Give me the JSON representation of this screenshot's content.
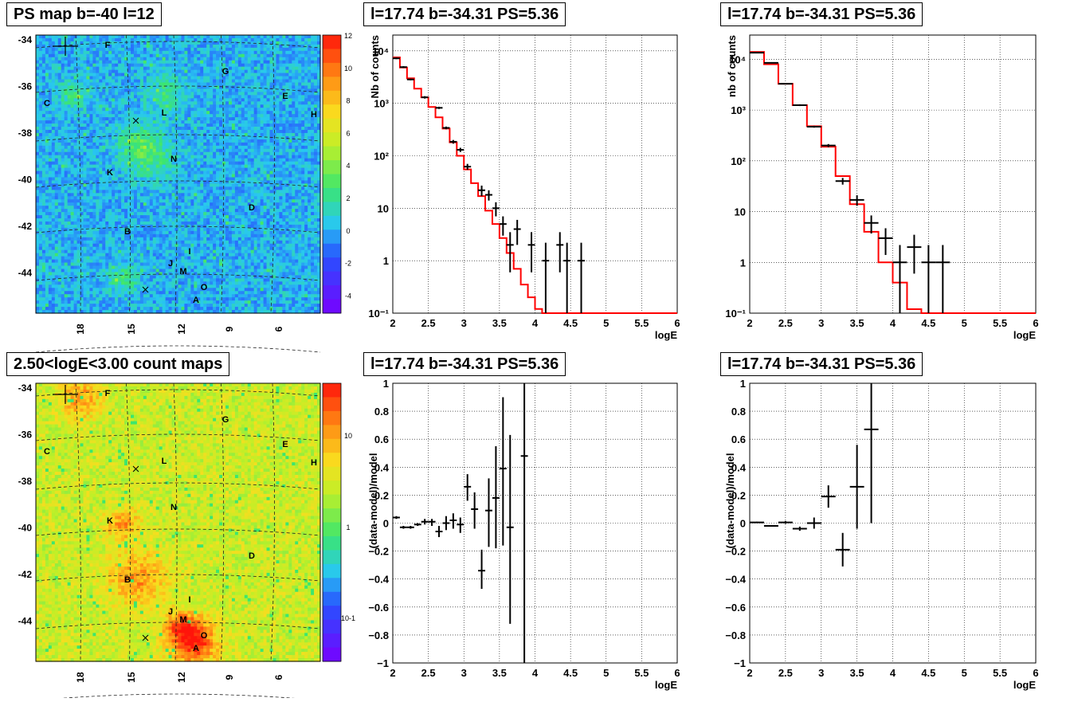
{
  "panels": {
    "ps_map_title": "PS map b=-40 l=12",
    "count_map_title": "2.50<logE<3.00 count maps",
    "spec1_title": "l=17.74 b=-34.31 PS=5.36",
    "spec2_title": "l=17.74 b=-34.31 PS=5.36",
    "res1_title": "l=17.74 b=-34.31 PS=5.36",
    "res2_title": "l=17.74 b=-34.31 PS=5.36"
  },
  "colors": {
    "model_line": "#ff0000",
    "data_markers": "#000000",
    "ps_map_background": "#33e0ee",
    "count_map_background": "#a8e840"
  },
  "chart_data": [
    {
      "type": "heatmap",
      "title": "PS map b=-40 l=12",
      "x_tick_labels": [
        "18",
        "15",
        "12",
        "9",
        "6"
      ],
      "y_tick_labels": [
        "-34",
        "-36",
        "-38",
        "-40",
        "-42",
        "-44"
      ],
      "colorbar_tick_labels": [
        "12",
        "10",
        "8",
        "6",
        "4",
        "2",
        "0",
        "-2",
        "-4"
      ],
      "colorbar_range": [
        -5,
        12
      ],
      "grid": "on",
      "source_labels": [
        "F",
        "G",
        "C",
        "E",
        "H",
        "L",
        "K",
        "N",
        "D",
        "B",
        "J",
        "I",
        "M",
        "O",
        "A"
      ]
    },
    {
      "type": "heatmap",
      "title": "2.50<logE<3.00 count maps",
      "x_tick_labels": [
        "18",
        "15",
        "12",
        "9",
        "6"
      ],
      "y_tick_labels": [
        "-34",
        "-36",
        "-38",
        "-40",
        "-42",
        "-44"
      ],
      "colorbar_tick_labels": [
        "10",
        "1",
        "10-1"
      ],
      "colorbar_scale": "log",
      "grid": "on",
      "source_labels": [
        "F",
        "G",
        "C",
        "E",
        "H",
        "L",
        "K",
        "N",
        "D",
        "B",
        "J",
        "I",
        "M",
        "O",
        "A"
      ]
    },
    {
      "type": "line",
      "title": "l=17.74 b=-34.31 PS=5.36",
      "xlabel": "logE",
      "ylabel": "Nb of counts",
      "xlim": [
        2,
        6
      ],
      "ylim": [
        0.1,
        20000
      ],
      "yscale": "log",
      "grid": "on",
      "x_tick_labels": [
        "2",
        "2.5",
        "3",
        "3.5",
        "4",
        "4.5",
        "5",
        "5.5",
        "6"
      ],
      "y_tick_labels": [
        "10⁴",
        "10³",
        "10²",
        "10",
        "1",
        "10⁻¹"
      ],
      "model": {
        "edges": [
          2.0,
          2.1,
          2.2,
          2.3,
          2.4,
          2.5,
          2.6,
          2.7,
          2.8,
          2.9,
          3.0,
          3.1,
          3.2,
          3.3,
          3.4,
          3.5,
          3.6,
          3.7,
          3.8,
          3.9,
          4.0,
          4.1,
          4.2,
          6.0
        ],
        "values": [
          7500,
          4800,
          3000,
          1900,
          1300,
          850,
          540,
          330,
          180,
          100,
          55,
          30,
          17,
          9,
          5,
          2.7,
          1.4,
          0.7,
          0.35,
          0.2,
          0.12,
          0.1,
          0.1
        ]
      },
      "data": [
        {
          "x": 2.05,
          "y": 7200,
          "lo": 6950,
          "hi": 7450
        },
        {
          "x": 2.15,
          "y": 4900,
          "lo": 4700,
          "hi": 5100
        },
        {
          "x": 2.25,
          "y": 2850,
          "lo": 2750,
          "hi": 2950
        },
        {
          "x": 2.45,
          "y": 1300,
          "lo": 1230,
          "hi": 1370
        },
        {
          "x": 2.65,
          "y": 820,
          "lo": 780,
          "hi": 860
        },
        {
          "x": 2.75,
          "y": 340,
          "lo": 320,
          "hi": 360
        },
        {
          "x": 2.85,
          "y": 185,
          "lo": 170,
          "hi": 200
        },
        {
          "x": 2.95,
          "y": 130,
          "lo": 118,
          "hi": 142
        },
        {
          "x": 3.05,
          "y": 62,
          "lo": 54,
          "hi": 70
        },
        {
          "x": 3.25,
          "y": 22,
          "lo": 17,
          "hi": 27
        },
        {
          "x": 3.35,
          "y": 18,
          "lo": 14,
          "hi": 22
        },
        {
          "x": 3.45,
          "y": 10,
          "lo": 7,
          "hi": 13
        },
        {
          "x": 3.55,
          "y": 5,
          "lo": 3,
          "hi": 7
        },
        {
          "x": 3.65,
          "y": 2,
          "lo": 0.6,
          "hi": 3.5
        },
        {
          "x": 3.75,
          "y": 4,
          "lo": 2,
          "hi": 6
        },
        {
          "x": 3.95,
          "y": 2,
          "lo": 0.6,
          "hi": 3.5
        },
        {
          "x": 4.15,
          "y": 1,
          "lo": 0.1,
          "hi": 2.2
        },
        {
          "x": 4.35,
          "y": 2,
          "lo": 0.6,
          "hi": 3.5
        },
        {
          "x": 4.45,
          "y": 1,
          "lo": 0.1,
          "hi": 2.2
        },
        {
          "x": 4.65,
          "y": 1,
          "lo": 0.1,
          "hi": 2.2
        }
      ]
    },
    {
      "type": "line",
      "title": "l=17.74 b=-34.31 PS=5.36",
      "xlabel": "logE",
      "ylabel": "nb of counts",
      "xlim": [
        2,
        6
      ],
      "ylim": [
        0.1,
        30000
      ],
      "yscale": "log",
      "grid": "on",
      "x_tick_labels": [
        "2",
        "2.5",
        "3",
        "3.5",
        "4",
        "4.5",
        "5",
        "5.5",
        "6"
      ],
      "y_tick_labels": [
        "10⁴",
        "10³",
        "10²",
        "10",
        "1",
        "10⁻¹"
      ],
      "model": {
        "edges": [
          2.0,
          2.2,
          2.4,
          2.6,
          2.8,
          3.0,
          3.2,
          3.4,
          3.6,
          3.8,
          4.0,
          4.2,
          4.4,
          6.0
        ],
        "values": [
          14000,
          8000,
          3300,
          1250,
          480,
          190,
          50,
          14,
          4,
          1,
          0.4,
          0.12,
          0.1
        ]
      },
      "data": [
        {
          "x": 2.1,
          "y": 13500,
          "lo": 13200,
          "hi": 13800
        },
        {
          "x": 2.3,
          "y": 8500,
          "lo": 8300,
          "hi": 8700
        },
        {
          "x": 2.5,
          "y": 3300,
          "lo": 3200,
          "hi": 3400
        },
        {
          "x": 2.7,
          "y": 1250,
          "lo": 1200,
          "hi": 1300
        },
        {
          "x": 2.9,
          "y": 470,
          "lo": 450,
          "hi": 490
        },
        {
          "x": 3.1,
          "y": 200,
          "lo": 186,
          "hi": 214
        },
        {
          "x": 3.3,
          "y": 40,
          "lo": 34,
          "hi": 46
        },
        {
          "x": 3.5,
          "y": 17,
          "lo": 13,
          "hi": 21
        },
        {
          "x": 3.7,
          "y": 6,
          "lo": 3.7,
          "hi": 8.4
        },
        {
          "x": 3.9,
          "y": 3,
          "lo": 1.4,
          "hi": 4.7
        },
        {
          "x": 4.1,
          "y": 1,
          "lo": 0.1,
          "hi": 2.2
        },
        {
          "x": 4.3,
          "y": 2,
          "lo": 0.6,
          "hi": 3.5
        },
        {
          "x": 4.5,
          "y": 1,
          "lo": 0.1,
          "hi": 2.2
        },
        {
          "x": 4.7,
          "y": 1,
          "lo": 0.1,
          "hi": 2.2
        }
      ]
    },
    {
      "type": "scatter",
      "title": "l=17.74 b=-34.31 PS=5.36",
      "xlabel": "logE",
      "ylabel": "(data-model)/model",
      "xlim": [
        2,
        6
      ],
      "ylim": [
        -1,
        1
      ],
      "grid": "on",
      "x_tick_labels": [
        "2",
        "2.5",
        "3",
        "3.5",
        "4",
        "4.5",
        "5",
        "5.5",
        "6"
      ],
      "y_tick_labels": [
        "1",
        "0.8",
        "0.6",
        "0.4",
        "0.2",
        "0",
        "−0.2",
        "−0.4",
        "−0.6",
        "−0.8",
        "−1"
      ],
      "data": [
        {
          "x": 2.05,
          "y": 0.04,
          "lo": 0.03,
          "hi": 0.05
        },
        {
          "x": 2.15,
          "y": -0.03,
          "lo": -0.04,
          "hi": -0.02
        },
        {
          "x": 2.25,
          "y": -0.03,
          "lo": -0.04,
          "hi": -0.02
        },
        {
          "x": 2.35,
          "y": -0.01,
          "lo": -0.02,
          "hi": 0.0
        },
        {
          "x": 2.45,
          "y": 0.01,
          "lo": -0.01,
          "hi": 0.03
        },
        {
          "x": 2.55,
          "y": 0.01,
          "lo": -0.02,
          "hi": 0.03
        },
        {
          "x": 2.65,
          "y": -0.06,
          "lo": -0.1,
          "hi": -0.02
        },
        {
          "x": 2.75,
          "y": 0.0,
          "lo": -0.05,
          "hi": 0.05
        },
        {
          "x": 2.85,
          "y": 0.02,
          "lo": -0.04,
          "hi": 0.07
        },
        {
          "x": 2.95,
          "y": -0.01,
          "lo": -0.07,
          "hi": 0.04
        },
        {
          "x": 3.05,
          "y": 0.26,
          "lo": 0.16,
          "hi": 0.35
        },
        {
          "x": 3.15,
          "y": 0.1,
          "lo": -0.04,
          "hi": 0.22
        },
        {
          "x": 3.25,
          "y": -0.34,
          "lo": -0.47,
          "hi": -0.19
        },
        {
          "x": 3.35,
          "y": 0.09,
          "lo": -0.17,
          "hi": 0.32
        },
        {
          "x": 3.45,
          "y": 0.18,
          "lo": -0.18,
          "hi": 0.55
        },
        {
          "x": 3.55,
          "y": 0.39,
          "lo": -0.16,
          "hi": 0.9
        },
        {
          "x": 3.65,
          "y": -0.03,
          "lo": -0.72,
          "hi": 0.63
        },
        {
          "x": 3.85,
          "y": 0.48,
          "lo": -1.0,
          "hi": 1.0
        }
      ]
    },
    {
      "type": "scatter",
      "title": "l=17.74 b=-34.31 PS=5.36",
      "xlabel": "logE",
      "ylabel": "(data-model)/model",
      "xlim": [
        2,
        6
      ],
      "ylim": [
        -1,
        1
      ],
      "grid": "on",
      "x_tick_labels": [
        "2",
        "2.5",
        "3",
        "3.5",
        "4",
        "4.5",
        "5",
        "5.5",
        "6"
      ],
      "y_tick_labels": [
        "1",
        "0.8",
        "0.6",
        "0.4",
        "0.2",
        "0",
        "−0.2",
        "−0.4",
        "−0.6",
        "−0.8",
        "−1"
      ],
      "data": [
        {
          "x": 2.1,
          "y": 0.005,
          "lo": 0.0,
          "hi": 0.01
        },
        {
          "x": 2.3,
          "y": -0.02,
          "lo": -0.025,
          "hi": -0.015
        },
        {
          "x": 2.5,
          "y": 0.005,
          "lo": -0.005,
          "hi": 0.015
        },
        {
          "x": 2.7,
          "y": -0.04,
          "lo": -0.055,
          "hi": -0.025
        },
        {
          "x": 2.9,
          "y": 0.0,
          "lo": -0.04,
          "hi": 0.04
        },
        {
          "x": 3.1,
          "y": 0.19,
          "lo": 0.11,
          "hi": 0.27
        },
        {
          "x": 3.3,
          "y": -0.19,
          "lo": -0.31,
          "hi": -0.07
        },
        {
          "x": 3.5,
          "y": 0.26,
          "lo": -0.04,
          "hi": 0.56
        },
        {
          "x": 3.7,
          "y": 0.67,
          "lo": 0.0,
          "hi": 1.0
        }
      ]
    }
  ]
}
